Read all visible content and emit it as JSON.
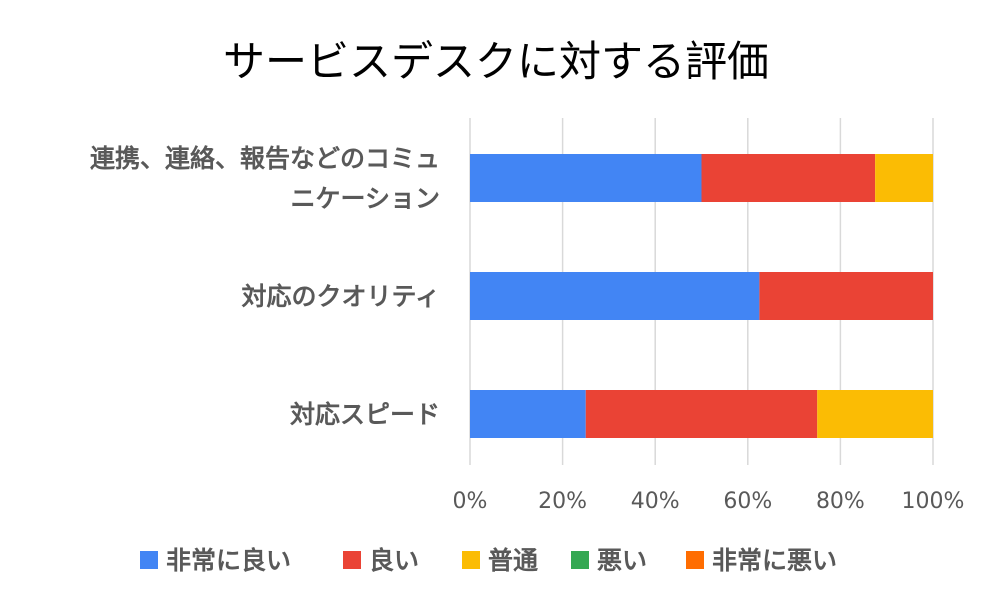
{
  "chart_data": {
    "type": "bar",
    "orientation": "horizontal",
    "stacked": "percent",
    "title": "サービスデスクに対する評価",
    "categories": [
      [
        "連携、連絡、報告などのコミュ",
        "ニケーション"
      ],
      [
        "対応のクオリティ"
      ],
      [
        "対応スピード"
      ]
    ],
    "series": [
      {
        "name": "非常に良い",
        "color": "#4285f4",
        "values": [
          50,
          62.5,
          25
        ]
      },
      {
        "name": "良い",
        "color": "#ea4335",
        "values": [
          37.5,
          37.5,
          50
        ]
      },
      {
        "name": "普通",
        "color": "#fbbc04",
        "values": [
          12.5,
          0,
          25
        ]
      },
      {
        "name": "悪い",
        "color": "#34a853",
        "values": [
          0,
          0,
          0
        ]
      },
      {
        "name": "非常に悪い",
        "color": "#ff6d01",
        "values": [
          0,
          0,
          0
        ]
      }
    ],
    "x_ticks": [
      "0%",
      "20%",
      "40%",
      "60%",
      "80%",
      "100%"
    ],
    "xlim": [
      0,
      100
    ],
    "grid": true,
    "legend_position": "bottom"
  }
}
